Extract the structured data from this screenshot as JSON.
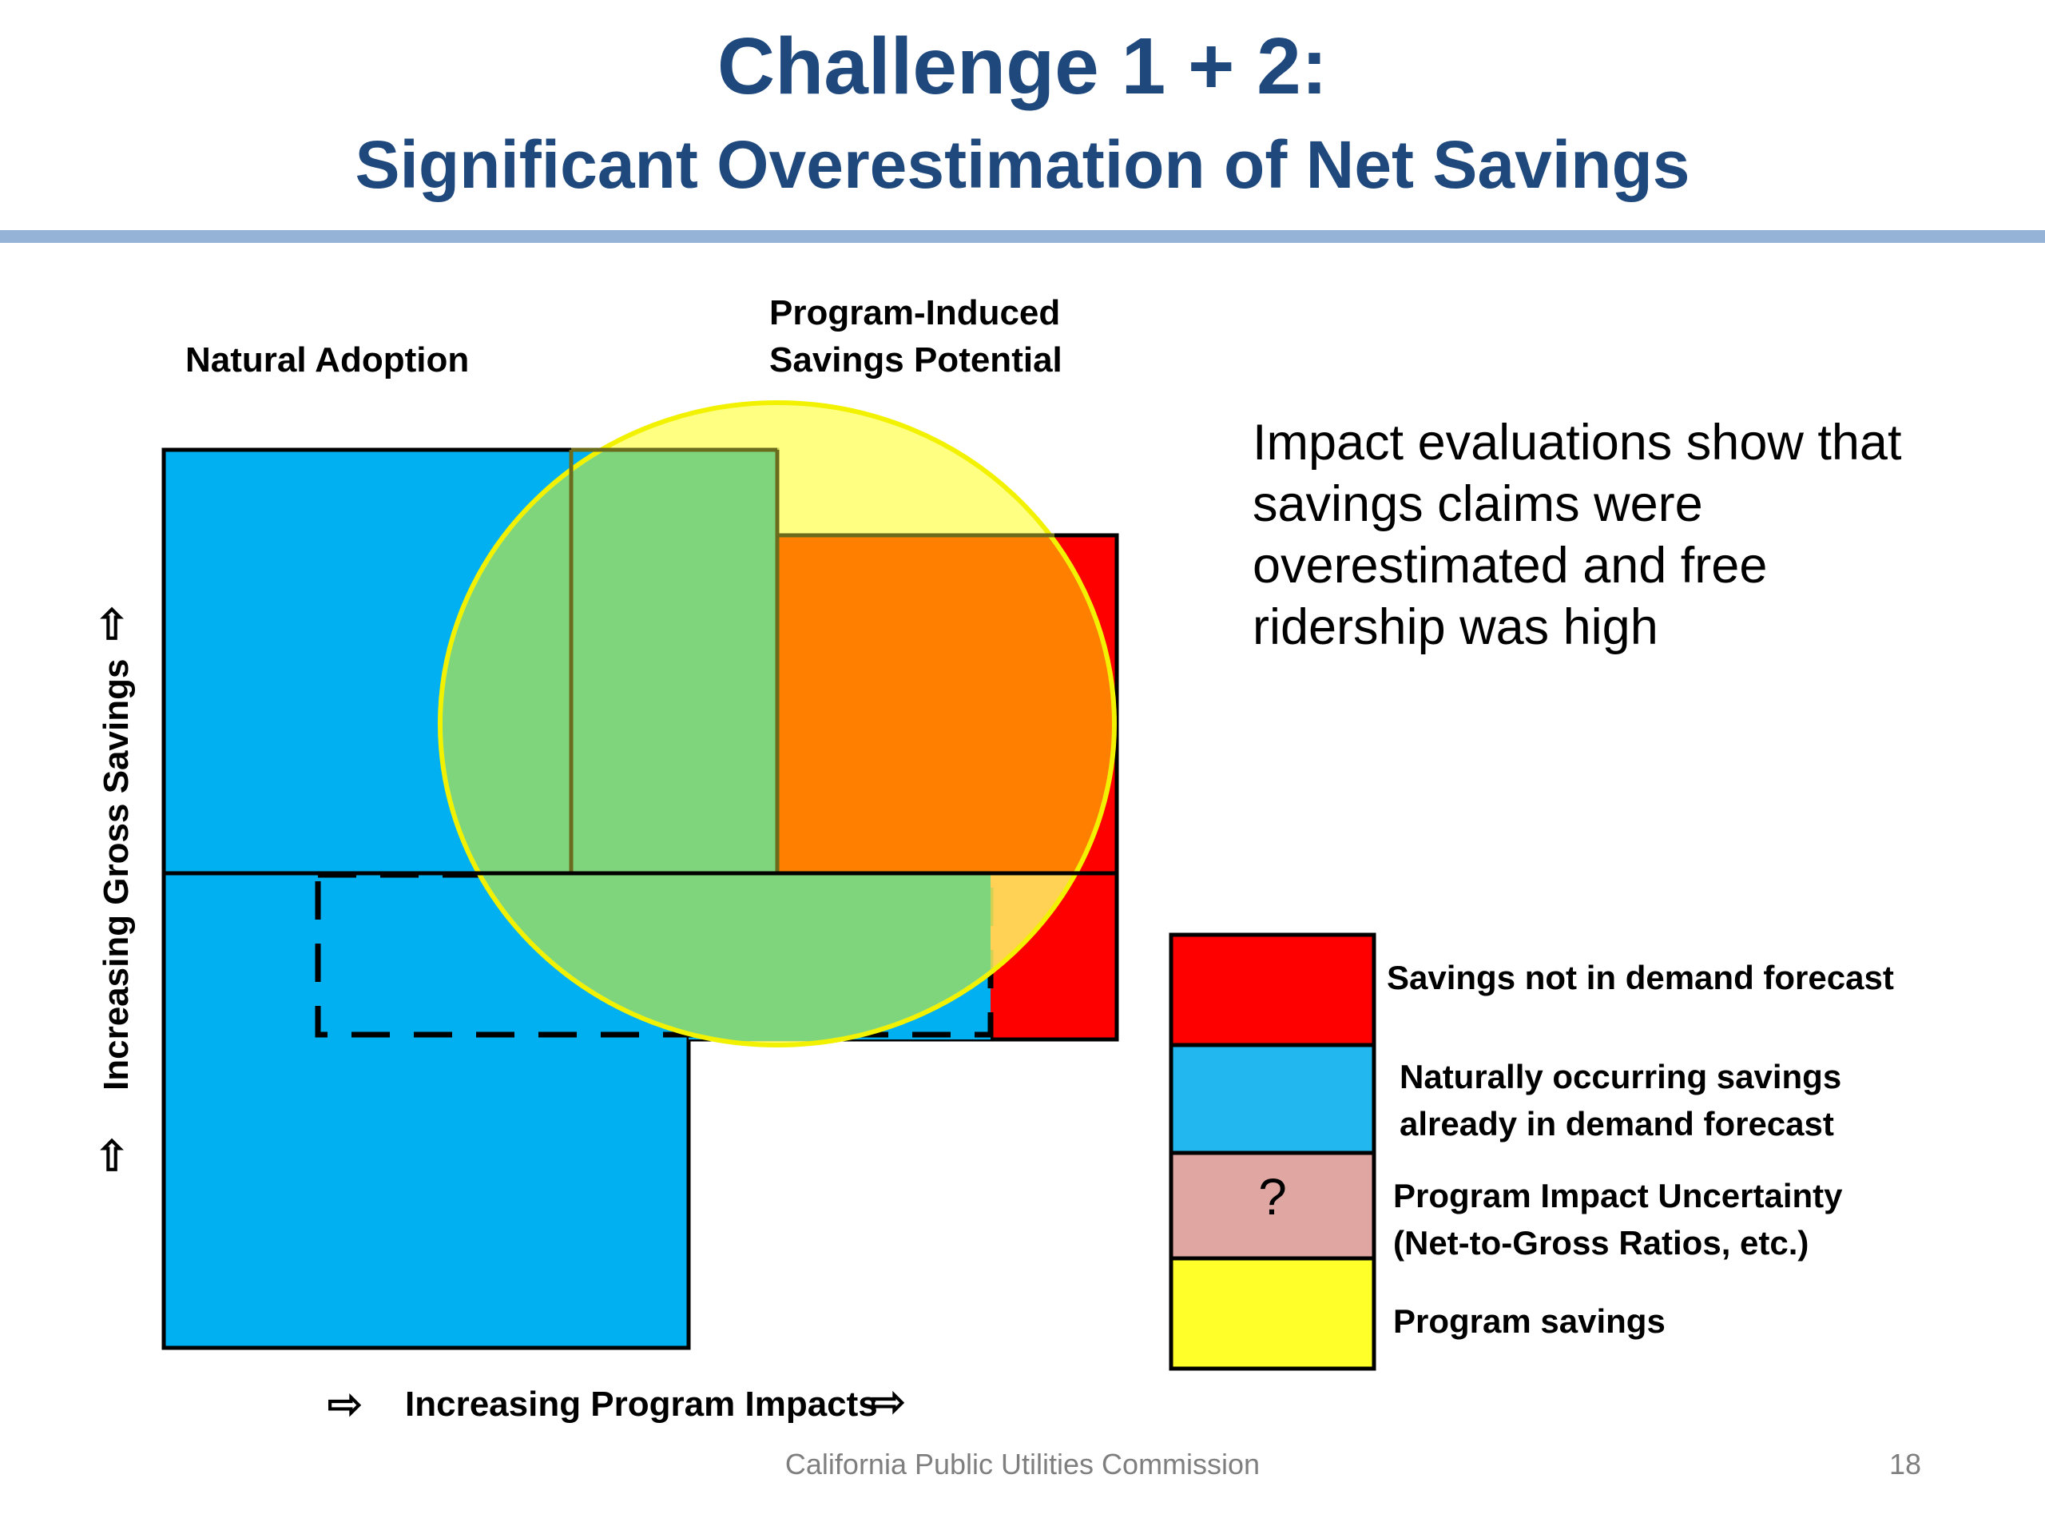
{
  "title": {
    "line1": "Challenge 1 + 2:",
    "line2": "Significant Overestimation of Net Savings"
  },
  "labels": {
    "natural_adoption": "Natural Adoption",
    "program_induced_line1": "Program-Induced",
    "program_induced_line2": "Savings Potential",
    "y_axis": "Increasing Gross Savings",
    "x_axis": "Increasing Program Impacts"
  },
  "arrows": {
    "up": "⇧",
    "right": "⇨"
  },
  "callout": {
    "lines": [
      "Impact evaluations show that",
      "savings claims were",
      "overestimated and free",
      "ridership was high"
    ]
  },
  "legend": [
    {
      "lines": [
        "Savings not in demand forecast"
      ],
      "color": "#FF0000",
      "symbol": ""
    },
    {
      "lines": [
        "Naturally occurring savings",
        "already in demand forecast"
      ],
      "color": "#22B7EE",
      "symbol": ""
    },
    {
      "lines": [
        "Program Impact Uncertainty",
        "(Net-to-Gross Ratios, etc.)"
      ],
      "color": "#E0A6A2",
      "symbol": "?"
    },
    {
      "lines": [
        "Program savings"
      ],
      "color": "#FFFF2A",
      "symbol": ""
    }
  ],
  "colors": {
    "natural_blue": "#00B0F0",
    "red": "#FF0000",
    "orange": "#FF8000",
    "green": "#7FD57B",
    "yellow_circle": "#FFFF66",
    "title_blue": "#1F497D",
    "rule_blue": "#95B3D7"
  },
  "footer": {
    "org": "California Public Utilities Commission",
    "page": "18"
  }
}
